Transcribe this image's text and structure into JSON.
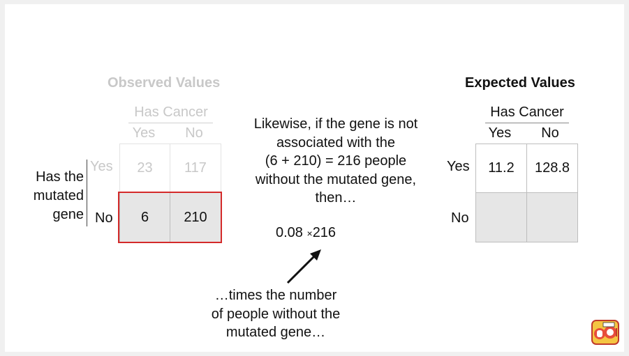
{
  "observed": {
    "title": "Observed Values",
    "header": "Has Cancer",
    "col_yes": "Yes",
    "col_no": "No",
    "row_label_lines": [
      "Has the",
      "mutated",
      "gene"
    ],
    "row_yes": "Yes",
    "row_no": "No",
    "cells": [
      [
        "23",
        "117"
      ],
      [
        "6",
        "210"
      ]
    ]
  },
  "middle": {
    "text_lines": [
      "Likewise, if the gene is not",
      "associated with the",
      "(6 + 210) = 216 people",
      "without the mutated gene,",
      "then…"
    ],
    "formula_left": "0.08",
    "formula_op": "×",
    "formula_right": "216",
    "note_lines": [
      "…times the number",
      "of people without the",
      "mutated gene…"
    ]
  },
  "expected": {
    "title": "Expected Values",
    "header": "Has Cancer",
    "col_yes": "Yes",
    "col_no": "No",
    "row_yes": "Yes",
    "row_no": "No",
    "cells": [
      [
        "11.2",
        "128.8"
      ],
      [
        "",
        ""
      ]
    ]
  },
  "colors": {
    "highlight": "#d42a2a",
    "faded_text": "#c8c8c8",
    "shaded_cell": "#e6e6e6"
  },
  "logo": {
    "icon": "statquest-logo-icon"
  }
}
